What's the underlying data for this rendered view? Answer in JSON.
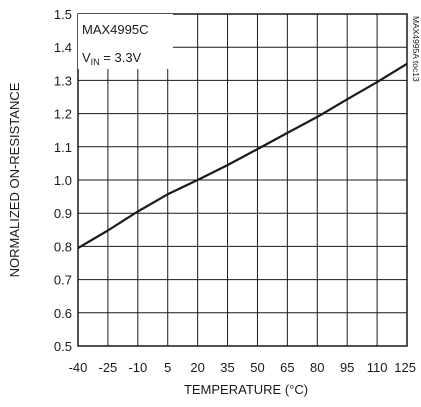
{
  "chart_data": {
    "type": "line",
    "title": "",
    "xlabel": "TEMPERATURE (°C)",
    "ylabel": "NORMALIZED ON-RESISTANCE",
    "xlim": [
      -40,
      125
    ],
    "ylim": [
      0.5,
      1.5
    ],
    "x_ticks": [
      -40,
      -25,
      -10,
      5,
      20,
      35,
      50,
      65,
      80,
      95,
      110,
      125
    ],
    "y_ticks": [
      "0.5",
      "0.6",
      "0.7",
      "0.8",
      "0.9",
      "1.0",
      "1.1",
      "1.2",
      "1.3",
      "1.4",
      "1.5"
    ],
    "grid": true,
    "legend": {
      "position": "top-left",
      "line1": "MAX4995C",
      "line2_prefix": "V",
      "line2_sub": "IN",
      "line2_suffix": " = 3.3V"
    },
    "side_note": "MAX4995A toc13",
    "series": [
      {
        "color": "#1a1a1a",
        "x": [
          -40,
          -25,
          -10,
          5,
          20,
          35,
          50,
          65,
          80,
          95,
          110,
          125
        ],
        "y": [
          0.795,
          0.848,
          0.905,
          0.957,
          1.0,
          1.045,
          1.093,
          1.142,
          1.19,
          1.243,
          1.295,
          1.35
        ]
      }
    ]
  }
}
